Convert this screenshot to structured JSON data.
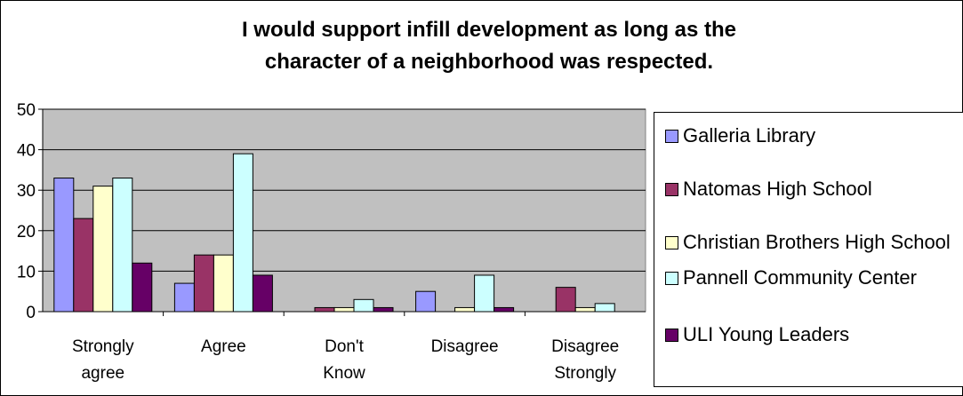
{
  "chart_data": {
    "type": "bar",
    "title_lines": [
      "I would support infill development as long as the",
      "character of a neighborhood was respected."
    ],
    "categories": [
      [
        "Strongly",
        "agree"
      ],
      [
        "Agree"
      ],
      [
        "Don't",
        "Know"
      ],
      [
        "Disagree"
      ],
      [
        "Disagree",
        "Strongly"
      ]
    ],
    "series": [
      {
        "name": "Galleria Library",
        "color": "#9999ff",
        "values": [
          33,
          7,
          0,
          5,
          0
        ]
      },
      {
        "name": "Natomas High School",
        "color": "#993366",
        "values": [
          23,
          14,
          1,
          0,
          6
        ]
      },
      {
        "name": "Christian Brothers High School",
        "color": "#ffffcc",
        "values": [
          31,
          14,
          1,
          1,
          1
        ]
      },
      {
        "name": "Pannell Community Center",
        "color": "#ccffff",
        "values": [
          33,
          39,
          3,
          9,
          2
        ]
      },
      {
        "name": "ULI Young Leaders",
        "color": "#660066",
        "values": [
          12,
          9,
          1,
          1,
          0
        ]
      }
    ],
    "ylim": [
      0,
      50
    ],
    "yticks": [
      "0",
      "10",
      "20",
      "30",
      "40",
      "50"
    ],
    "plot_background": "#c0c0c0",
    "grid": true,
    "legend_position": "right"
  }
}
